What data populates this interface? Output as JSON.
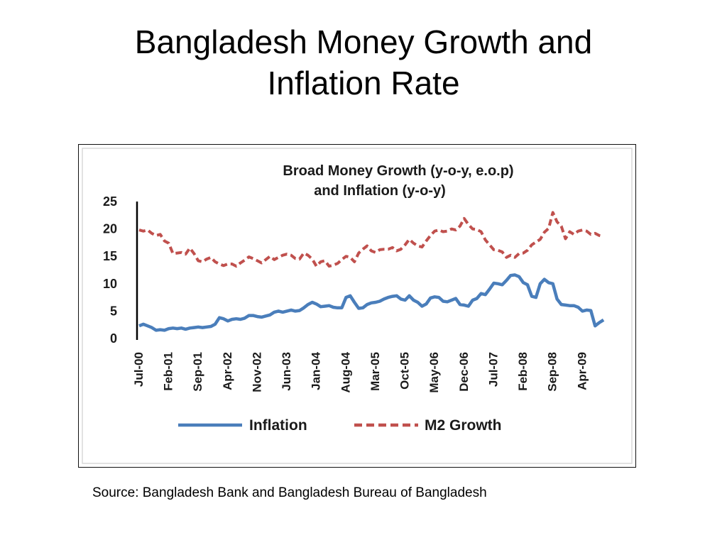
{
  "slide": {
    "title_line1": "Bangladesh Money Growth and",
    "title_line2": "Inflation Rate",
    "source": "Source: Bangladesh Bank and Bangladesh Bureau of Bangladesh"
  },
  "chart_data": {
    "type": "line",
    "title_line1": "Broad Money Growth (y-o-y, e.o.p)",
    "title_line2": "and Inflation (y-o-y)",
    "xlabel": "",
    "ylabel": "",
    "ylim": [
      0,
      25
    ],
    "yticks": [
      0,
      5,
      10,
      15,
      20,
      25
    ],
    "xticks": [
      "Jul-00",
      "Feb-01",
      "Sep-01",
      "Apr-02",
      "Nov-02",
      "Jun-03",
      "Jan-04",
      "Aug-04",
      "Mar-05",
      "Oct-05",
      "May-06",
      "Dec-06",
      "Jul-07",
      "Feb-08",
      "Sep-08",
      "Apr-09"
    ],
    "x_start": "Jul-00",
    "x_end": "Oct-09",
    "grid": false,
    "legend_position": "bottom",
    "series": [
      {
        "name": "Inflation",
        "color": "#4a7ebb",
        "style": "solid",
        "points": [
          [
            "Jul-00",
            2.3
          ],
          [
            "Aug-00",
            2.6
          ],
          [
            "Sep-00",
            2.3
          ],
          [
            "Oct-00",
            2.0
          ],
          [
            "Nov-00",
            1.5
          ],
          [
            "Dec-00",
            1.6
          ],
          [
            "Jan-01",
            1.5
          ],
          [
            "Feb-01",
            1.8
          ],
          [
            "Mar-01",
            1.9
          ],
          [
            "Apr-01",
            1.8
          ],
          [
            "May-01",
            1.9
          ],
          [
            "Jun-01",
            1.7
          ],
          [
            "Jul-01",
            1.9
          ],
          [
            "Aug-01",
            2.0
          ],
          [
            "Sep-01",
            2.1
          ],
          [
            "Oct-01",
            2.0
          ],
          [
            "Nov-01",
            2.1
          ],
          [
            "Dec-01",
            2.2
          ],
          [
            "Jan-02",
            2.6
          ],
          [
            "Feb-02",
            3.8
          ],
          [
            "Mar-02",
            3.6
          ],
          [
            "Apr-02",
            3.2
          ],
          [
            "May-02",
            3.5
          ],
          [
            "Jun-02",
            3.6
          ],
          [
            "Jul-02",
            3.5
          ],
          [
            "Aug-02",
            3.7
          ],
          [
            "Sep-02",
            4.2
          ],
          [
            "Oct-02",
            4.2
          ],
          [
            "Nov-02",
            4.0
          ],
          [
            "Dec-02",
            3.9
          ],
          [
            "Jan-03",
            4.1
          ],
          [
            "Feb-03",
            4.3
          ],
          [
            "Mar-03",
            4.8
          ],
          [
            "Apr-03",
            5.0
          ],
          [
            "May-03",
            4.8
          ],
          [
            "Jun-03",
            5.0
          ],
          [
            "Jul-03",
            5.2
          ],
          [
            "Aug-03",
            5.0
          ],
          [
            "Sep-03",
            5.1
          ],
          [
            "Oct-03",
            5.6
          ],
          [
            "Nov-03",
            6.2
          ],
          [
            "Dec-03",
            6.6
          ],
          [
            "Jan-04",
            6.3
          ],
          [
            "Feb-04",
            5.8
          ],
          [
            "Mar-04",
            5.9
          ],
          [
            "Apr-04",
            6.0
          ],
          [
            "May-04",
            5.7
          ],
          [
            "Jun-04",
            5.6
          ],
          [
            "Jul-04",
            5.6
          ],
          [
            "Aug-04",
            7.5
          ],
          [
            "Sep-04",
            7.8
          ],
          [
            "Oct-04",
            6.6
          ],
          [
            "Nov-04",
            5.5
          ],
          [
            "Dec-04",
            5.6
          ],
          [
            "Jan-05",
            6.2
          ],
          [
            "Feb-05",
            6.5
          ],
          [
            "Mar-05",
            6.6
          ],
          [
            "Apr-05",
            6.8
          ],
          [
            "May-05",
            7.2
          ],
          [
            "Jun-05",
            7.5
          ],
          [
            "Jul-05",
            7.7
          ],
          [
            "Aug-05",
            7.8
          ],
          [
            "Sep-05",
            7.2
          ],
          [
            "Oct-05",
            7.0
          ],
          [
            "Nov-05",
            7.8
          ],
          [
            "Dec-05",
            7.0
          ],
          [
            "Jan-06",
            6.6
          ],
          [
            "Feb-06",
            5.9
          ],
          [
            "Mar-06",
            6.3
          ],
          [
            "Apr-06",
            7.4
          ],
          [
            "May-06",
            7.6
          ],
          [
            "Jun-06",
            7.5
          ],
          [
            "Jul-06",
            6.8
          ],
          [
            "Aug-06",
            6.7
          ],
          [
            "Sep-06",
            7.0
          ],
          [
            "Oct-06",
            7.3
          ],
          [
            "Nov-06",
            6.2
          ],
          [
            "Dec-06",
            6.1
          ],
          [
            "Jan-07",
            5.9
          ],
          [
            "Feb-07",
            7.0
          ],
          [
            "Mar-07",
            7.3
          ],
          [
            "Apr-07",
            8.2
          ],
          [
            "May-07",
            8.0
          ],
          [
            "Jun-07",
            9.0
          ],
          [
            "Jul-07",
            10.1
          ],
          [
            "Aug-07",
            10.0
          ],
          [
            "Sep-07",
            9.8
          ],
          [
            "Oct-07",
            10.6
          ],
          [
            "Nov-07",
            11.5
          ],
          [
            "Dec-07",
            11.6
          ],
          [
            "Jan-08",
            11.3
          ],
          [
            "Feb-08",
            10.2
          ],
          [
            "Mar-08",
            9.8
          ],
          [
            "Apr-08",
            7.7
          ],
          [
            "May-08",
            7.5
          ],
          [
            "Jun-08",
            10.0
          ],
          [
            "Jul-08",
            10.8
          ],
          [
            "Aug-08",
            10.2
          ],
          [
            "Sep-08",
            10.0
          ],
          [
            "Oct-08",
            7.2
          ],
          [
            "Nov-08",
            6.2
          ],
          [
            "Dec-08",
            6.1
          ],
          [
            "Jan-09",
            6.0
          ],
          [
            "Feb-09",
            6.0
          ],
          [
            "Mar-09",
            5.7
          ],
          [
            "Apr-09",
            5.0
          ],
          [
            "May-09",
            5.2
          ],
          [
            "Jun-09",
            5.1
          ],
          [
            "Jul-09",
            2.3
          ],
          [
            "Aug-09",
            2.9
          ],
          [
            "Sep-09",
            3.4
          ]
        ]
      },
      {
        "name": "M2 Growth",
        "color": "#c0504d",
        "style": "dashed",
        "points": [
          [
            "Jul-00",
            19.8
          ],
          [
            "Aug-00",
            19.6
          ],
          [
            "Sep-00",
            19.8
          ],
          [
            "Oct-00",
            19.2
          ],
          [
            "Nov-00",
            18.8
          ],
          [
            "Dec-00",
            19.0
          ],
          [
            "Jan-01",
            17.8
          ],
          [
            "Feb-01",
            17.4
          ],
          [
            "Mar-01",
            15.5
          ],
          [
            "Apr-01",
            15.6
          ],
          [
            "May-01",
            15.7
          ],
          [
            "Jun-01",
            15.4
          ],
          [
            "Jul-01",
            16.5
          ],
          [
            "Aug-01",
            15.5
          ],
          [
            "Sep-01",
            14.2
          ],
          [
            "Oct-01",
            14.0
          ],
          [
            "Nov-01",
            14.5
          ],
          [
            "Dec-01",
            14.8
          ],
          [
            "Jan-02",
            14.0
          ],
          [
            "Feb-02",
            13.6
          ],
          [
            "Mar-02",
            13.3
          ],
          [
            "Apr-02",
            13.6
          ],
          [
            "May-02",
            13.6
          ],
          [
            "Jun-02",
            13.2
          ],
          [
            "Jul-02",
            13.8
          ],
          [
            "Aug-02",
            14.3
          ],
          [
            "Sep-02",
            14.9
          ],
          [
            "Oct-02",
            14.6
          ],
          [
            "Nov-02",
            14.2
          ],
          [
            "Dec-02",
            13.8
          ],
          [
            "Jan-03",
            14.4
          ],
          [
            "Feb-03",
            15.0
          ],
          [
            "Mar-03",
            14.4
          ],
          [
            "Apr-03",
            14.8
          ],
          [
            "May-03",
            15.2
          ],
          [
            "Jun-03",
            15.4
          ],
          [
            "Jul-03",
            15.2
          ],
          [
            "Aug-03",
            14.6
          ],
          [
            "Sep-03",
            14.5
          ],
          [
            "Oct-03",
            15.6
          ],
          [
            "Nov-03",
            15.2
          ],
          [
            "Dec-03",
            14.5
          ],
          [
            "Jan-04",
            13.2
          ],
          [
            "Feb-04",
            14.0
          ],
          [
            "Mar-04",
            14.2
          ],
          [
            "Apr-04",
            13.2
          ],
          [
            "May-04",
            13.4
          ],
          [
            "Jun-04",
            13.7
          ],
          [
            "Jul-04",
            14.4
          ],
          [
            "Aug-04",
            15.0
          ],
          [
            "Sep-04",
            14.8
          ],
          [
            "Oct-04",
            14.0
          ],
          [
            "Nov-04",
            15.6
          ],
          [
            "Dec-04",
            16.3
          ],
          [
            "Jan-05",
            16.9
          ],
          [
            "Feb-05",
            16.0
          ],
          [
            "Mar-05",
            15.7
          ],
          [
            "Apr-05",
            16.2
          ],
          [
            "May-05",
            16.3
          ],
          [
            "Jun-05",
            16.3
          ],
          [
            "Jul-05",
            16.6
          ],
          [
            "Aug-05",
            16.0
          ],
          [
            "Sep-05",
            16.3
          ],
          [
            "Oct-05",
            17.1
          ],
          [
            "Nov-05",
            18.1
          ],
          [
            "Dec-05",
            17.4
          ],
          [
            "Jan-06",
            16.9
          ],
          [
            "Feb-06",
            16.7
          ],
          [
            "Mar-06",
            17.8
          ],
          [
            "Apr-06",
            18.8
          ],
          [
            "May-06",
            19.6
          ],
          [
            "Jun-06",
            19.8
          ],
          [
            "Jul-06",
            19.5
          ],
          [
            "Aug-06",
            19.6
          ],
          [
            "Sep-06",
            20.0
          ],
          [
            "Oct-06",
            19.8
          ],
          [
            "Nov-06",
            20.5
          ],
          [
            "Dec-06",
            21.9
          ],
          [
            "Jan-07",
            20.8
          ],
          [
            "Feb-07",
            20.0
          ],
          [
            "Mar-07",
            19.9
          ],
          [
            "Apr-07",
            19.5
          ],
          [
            "May-07",
            18.0
          ],
          [
            "Jun-07",
            17.1
          ],
          [
            "Jul-07",
            16.2
          ],
          [
            "Aug-07",
            16.1
          ],
          [
            "Sep-07",
            15.8
          ],
          [
            "Oct-07",
            14.8
          ],
          [
            "Nov-07",
            15.2
          ],
          [
            "Dec-07",
            14.8
          ],
          [
            "Jan-08",
            15.5
          ],
          [
            "Feb-08",
            15.6
          ],
          [
            "Mar-08",
            16.1
          ],
          [
            "Apr-08",
            17.1
          ],
          [
            "May-08",
            17.6
          ],
          [
            "Jun-08",
            18.1
          ],
          [
            "Jul-08",
            19.4
          ],
          [
            "Aug-08",
            20.1
          ],
          [
            "Sep-08",
            23.0
          ],
          [
            "Oct-08",
            21.3
          ],
          [
            "Nov-08",
            20.5
          ],
          [
            "Dec-08",
            18.2
          ],
          [
            "Jan-09",
            19.5
          ],
          [
            "Feb-09",
            19.0
          ],
          [
            "Mar-09",
            19.6
          ],
          [
            "Apr-09",
            19.8
          ],
          [
            "May-09",
            19.6
          ],
          [
            "Jun-09",
            19.0
          ],
          [
            "Jul-09",
            19.2
          ],
          [
            "Aug-09",
            18.8
          ],
          [
            "Sep-09",
            18.6
          ]
        ]
      }
    ]
  }
}
